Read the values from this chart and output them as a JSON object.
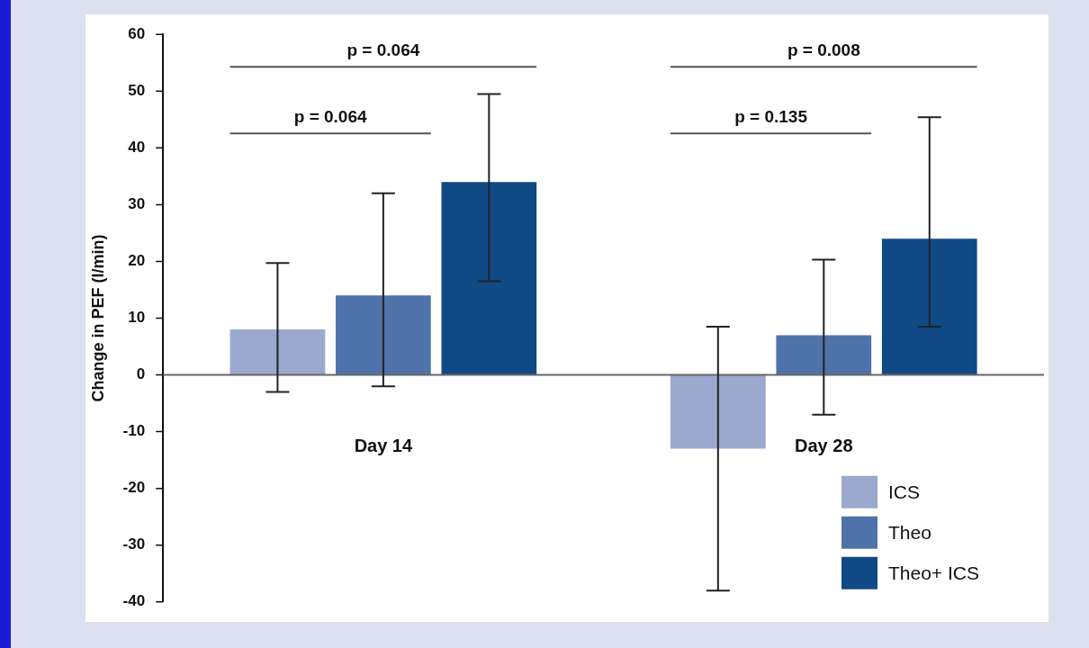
{
  "chart_data": {
    "type": "bar",
    "ylabel": "Change in PEF (l/min)",
    "categories": [
      "Day 14",
      "Day 28"
    ],
    "series": [
      {
        "name": "ICS",
        "color": "#9ba9cf",
        "values": [
          8,
          -13
        ],
        "errors": [
          [
            -3,
            19.7
          ],
          [
            -38,
            8.5
          ]
        ]
      },
      {
        "name": "Theo",
        "color": "#4f72aa",
        "values": [
          14,
          7
        ],
        "errors": [
          [
            -2,
            32
          ],
          [
            -7,
            20.3
          ]
        ]
      },
      {
        "name": "Theo+ ICS",
        "color": "#0f4a87",
        "values": [
          34,
          24
        ],
        "errors": [
          [
            16.5,
            49.5
          ],
          [
            8.5,
            45.4
          ]
        ]
      }
    ],
    "ref_lines": [
      {
        "axis": "y",
        "value": 0,
        "color": "#666666"
      }
    ],
    "ylim": [
      -40,
      60
    ],
    "yticks": [
      -40,
      -30,
      -20,
      -10,
      0,
      10,
      20,
      30,
      40,
      50,
      60
    ],
    "grid": false,
    "legend": "bottom right",
    "annotations": [
      "p = 0.064",
      "p = 0.008",
      "p = 0.064",
      "p = 0.135"
    ]
  }
}
